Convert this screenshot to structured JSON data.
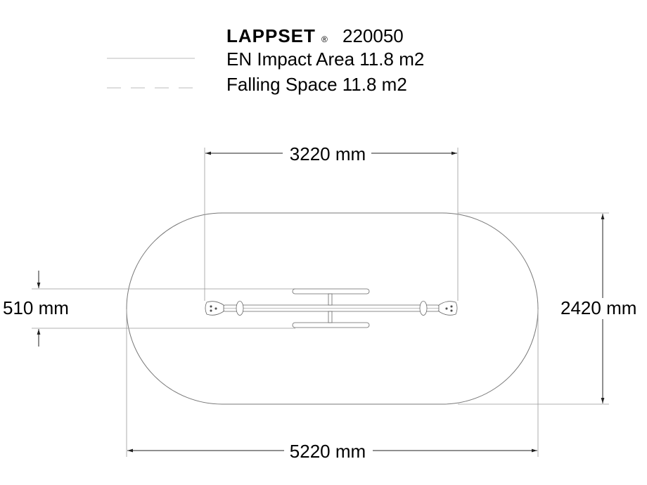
{
  "legend": {
    "brand": "LAPPSET",
    "registered_mark": "®",
    "product_code": "220050",
    "impact_area_label": "EN Impact Area 11.8 m2",
    "falling_space_label": "Falling Space 11.8 m2"
  },
  "dimensions": {
    "top": "3220 mm",
    "right": "2420 mm",
    "bottom": "5220 mm",
    "left": "510 mm"
  },
  "colors": {
    "line": "#888888",
    "text": "#000000"
  }
}
